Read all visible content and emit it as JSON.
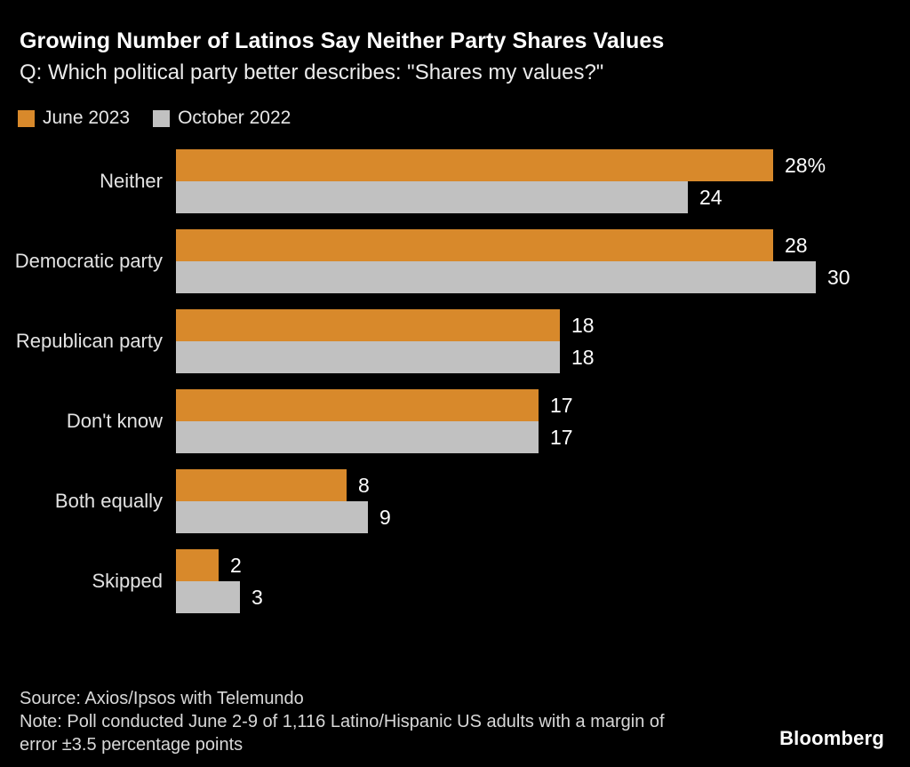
{
  "header": {
    "title": "Growing Number of Latinos Say Neither Party Shares Values",
    "subtitle": "Q: Which political party better describes: \"Shares my values?\""
  },
  "chart_data": {
    "type": "bar",
    "orientation": "horizontal",
    "title": "Growing Number of Latinos Say Neither Party Shares Values",
    "subtitle": "Q: Which political party better describes: \"Shares my values?\"",
    "categories": [
      "Neither",
      "Democratic party",
      "Republican party",
      "Don't know",
      "Both equally",
      "Skipped"
    ],
    "series": [
      {
        "name": "June 2023",
        "color": "#d8892b",
        "values": [
          28,
          28,
          18,
          17,
          8,
          2
        ],
        "labels": [
          "28%",
          "28",
          "18",
          "17",
          "8",
          "2"
        ]
      },
      {
        "name": "October 2022",
        "color": "#c1c1c1",
        "values": [
          24,
          30,
          18,
          17,
          9,
          3
        ],
        "labels": [
          "24",
          "30",
          "18",
          "17",
          "9",
          "3"
        ]
      }
    ],
    "xlim": [
      0,
      30
    ],
    "grid": false,
    "legend_position": "top-left",
    "value_labels": "outside-end",
    "background_color": "#000000"
  },
  "footer": {
    "source": "Source: Axios/Ipsos with Telemundo",
    "note_lines": [
      "Note: Poll conducted June 2-9 of 1,116 Latino/Hispanic US adults with a margin of",
      "error ±3.5 percentage points"
    ]
  },
  "branding": {
    "logo_text": "Bloomberg"
  }
}
